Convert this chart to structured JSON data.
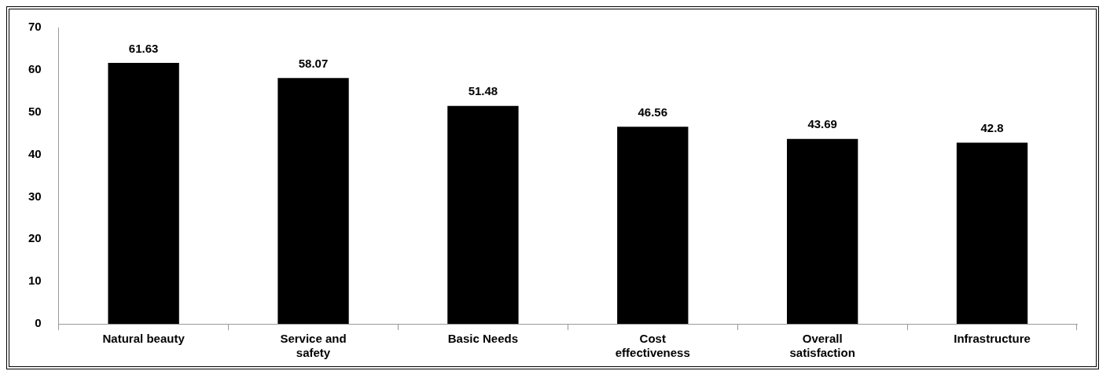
{
  "chart_data": {
    "type": "bar",
    "categories": [
      "Natural beauty",
      "Service and safety",
      "Basic Needs",
      "Cost effectiveness",
      "Overall satisfaction",
      "Infrastructure"
    ],
    "values": [
      61.63,
      58.07,
      51.48,
      46.56,
      43.69,
      42.8
    ],
    "color": "#000000",
    "ylim": [
      0,
      70
    ],
    "yticks": [
      0,
      10,
      20,
      30,
      40,
      50,
      60,
      70
    ],
    "grid": false,
    "data_labels": true
  }
}
